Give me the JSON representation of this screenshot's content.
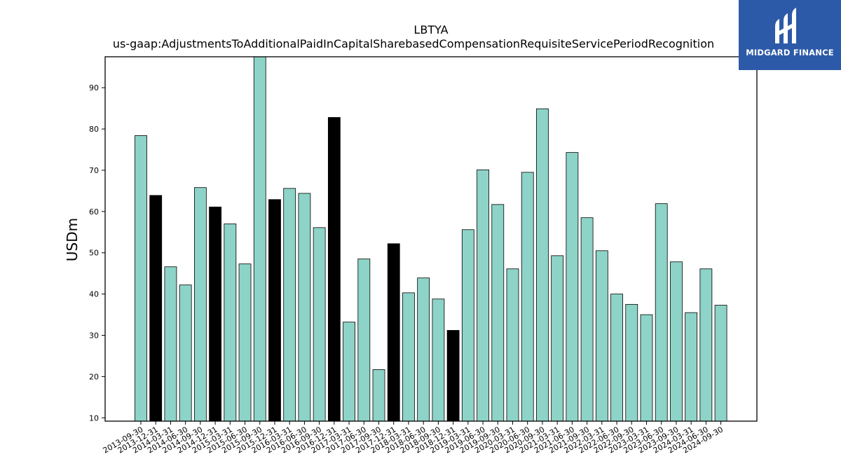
{
  "brand": {
    "name": "MIDGARD FINANCE",
    "color": "#2d5aa8"
  },
  "chart_data": {
    "type": "bar",
    "title": "LBTYA",
    "subtitle": "us-gaap:AdjustmentsToAdditionalPaidInCapitalSharebasedCompensationRequisiteServicePeriodRecognition",
    "xlabel": "",
    "ylabel": "USDm",
    "ylim": [
      9.2,
      97.5
    ],
    "yticks": [
      10,
      20,
      30,
      40,
      50,
      60,
      70,
      80,
      90
    ],
    "grid": false,
    "legend": "none",
    "colors": {
      "default": "#8dd3c7",
      "highlight": "#000000",
      "edge": "#000000"
    },
    "categories": [
      "2013-09-30",
      "2013-12-31",
      "2014-03-31",
      "2014-06-30",
      "2014-09-30",
      "2014-12-31",
      "2015-03-31",
      "2015-06-30",
      "2015-09-30",
      "2015-12-31",
      "2016-03-31",
      "2016-06-30",
      "2016-09-30",
      "2016-12-31",
      "2017-03-31",
      "2017-06-30",
      "2017-09-30",
      "2017-12-31",
      "2018-03-31",
      "2018-06-30",
      "2018-09-30",
      "2018-12-31",
      "2019-03-31",
      "2019-06-30",
      "2019-09-30",
      "2020-03-31",
      "2020-06-30",
      "2020-09-30",
      "2021-03-31",
      "2021-06-30",
      "2021-09-30",
      "2022-03-31",
      "2022-06-30",
      "2022-09-30",
      "2023-03-31",
      "2023-06-30",
      "2023-09-30",
      "2024-03-31",
      "2024-06-30",
      "2024-09-30"
    ],
    "values": [
      78.4,
      63.9,
      46.6,
      42.2,
      65.8,
      61.1,
      57.0,
      47.3,
      97.5,
      62.9,
      65.6,
      64.4,
      56.1,
      82.8,
      33.2,
      48.5,
      21.7,
      52.2,
      40.3,
      43.9,
      38.8,
      31.2,
      55.6,
      70.1,
      61.7,
      46.1,
      69.5,
      84.9,
      49.3,
      74.3,
      58.5,
      50.5,
      40.0,
      37.5,
      35.0,
      61.9,
      47.8,
      35.5,
      46.1,
      37.3
    ],
    "highlight": [
      false,
      true,
      false,
      false,
      false,
      true,
      false,
      false,
      false,
      true,
      false,
      false,
      false,
      true,
      false,
      false,
      false,
      true,
      false,
      false,
      false,
      true,
      false,
      false,
      false,
      false,
      false,
      false,
      false,
      false,
      false,
      false,
      false,
      false,
      false,
      false,
      false,
      false,
      false,
      false
    ]
  }
}
